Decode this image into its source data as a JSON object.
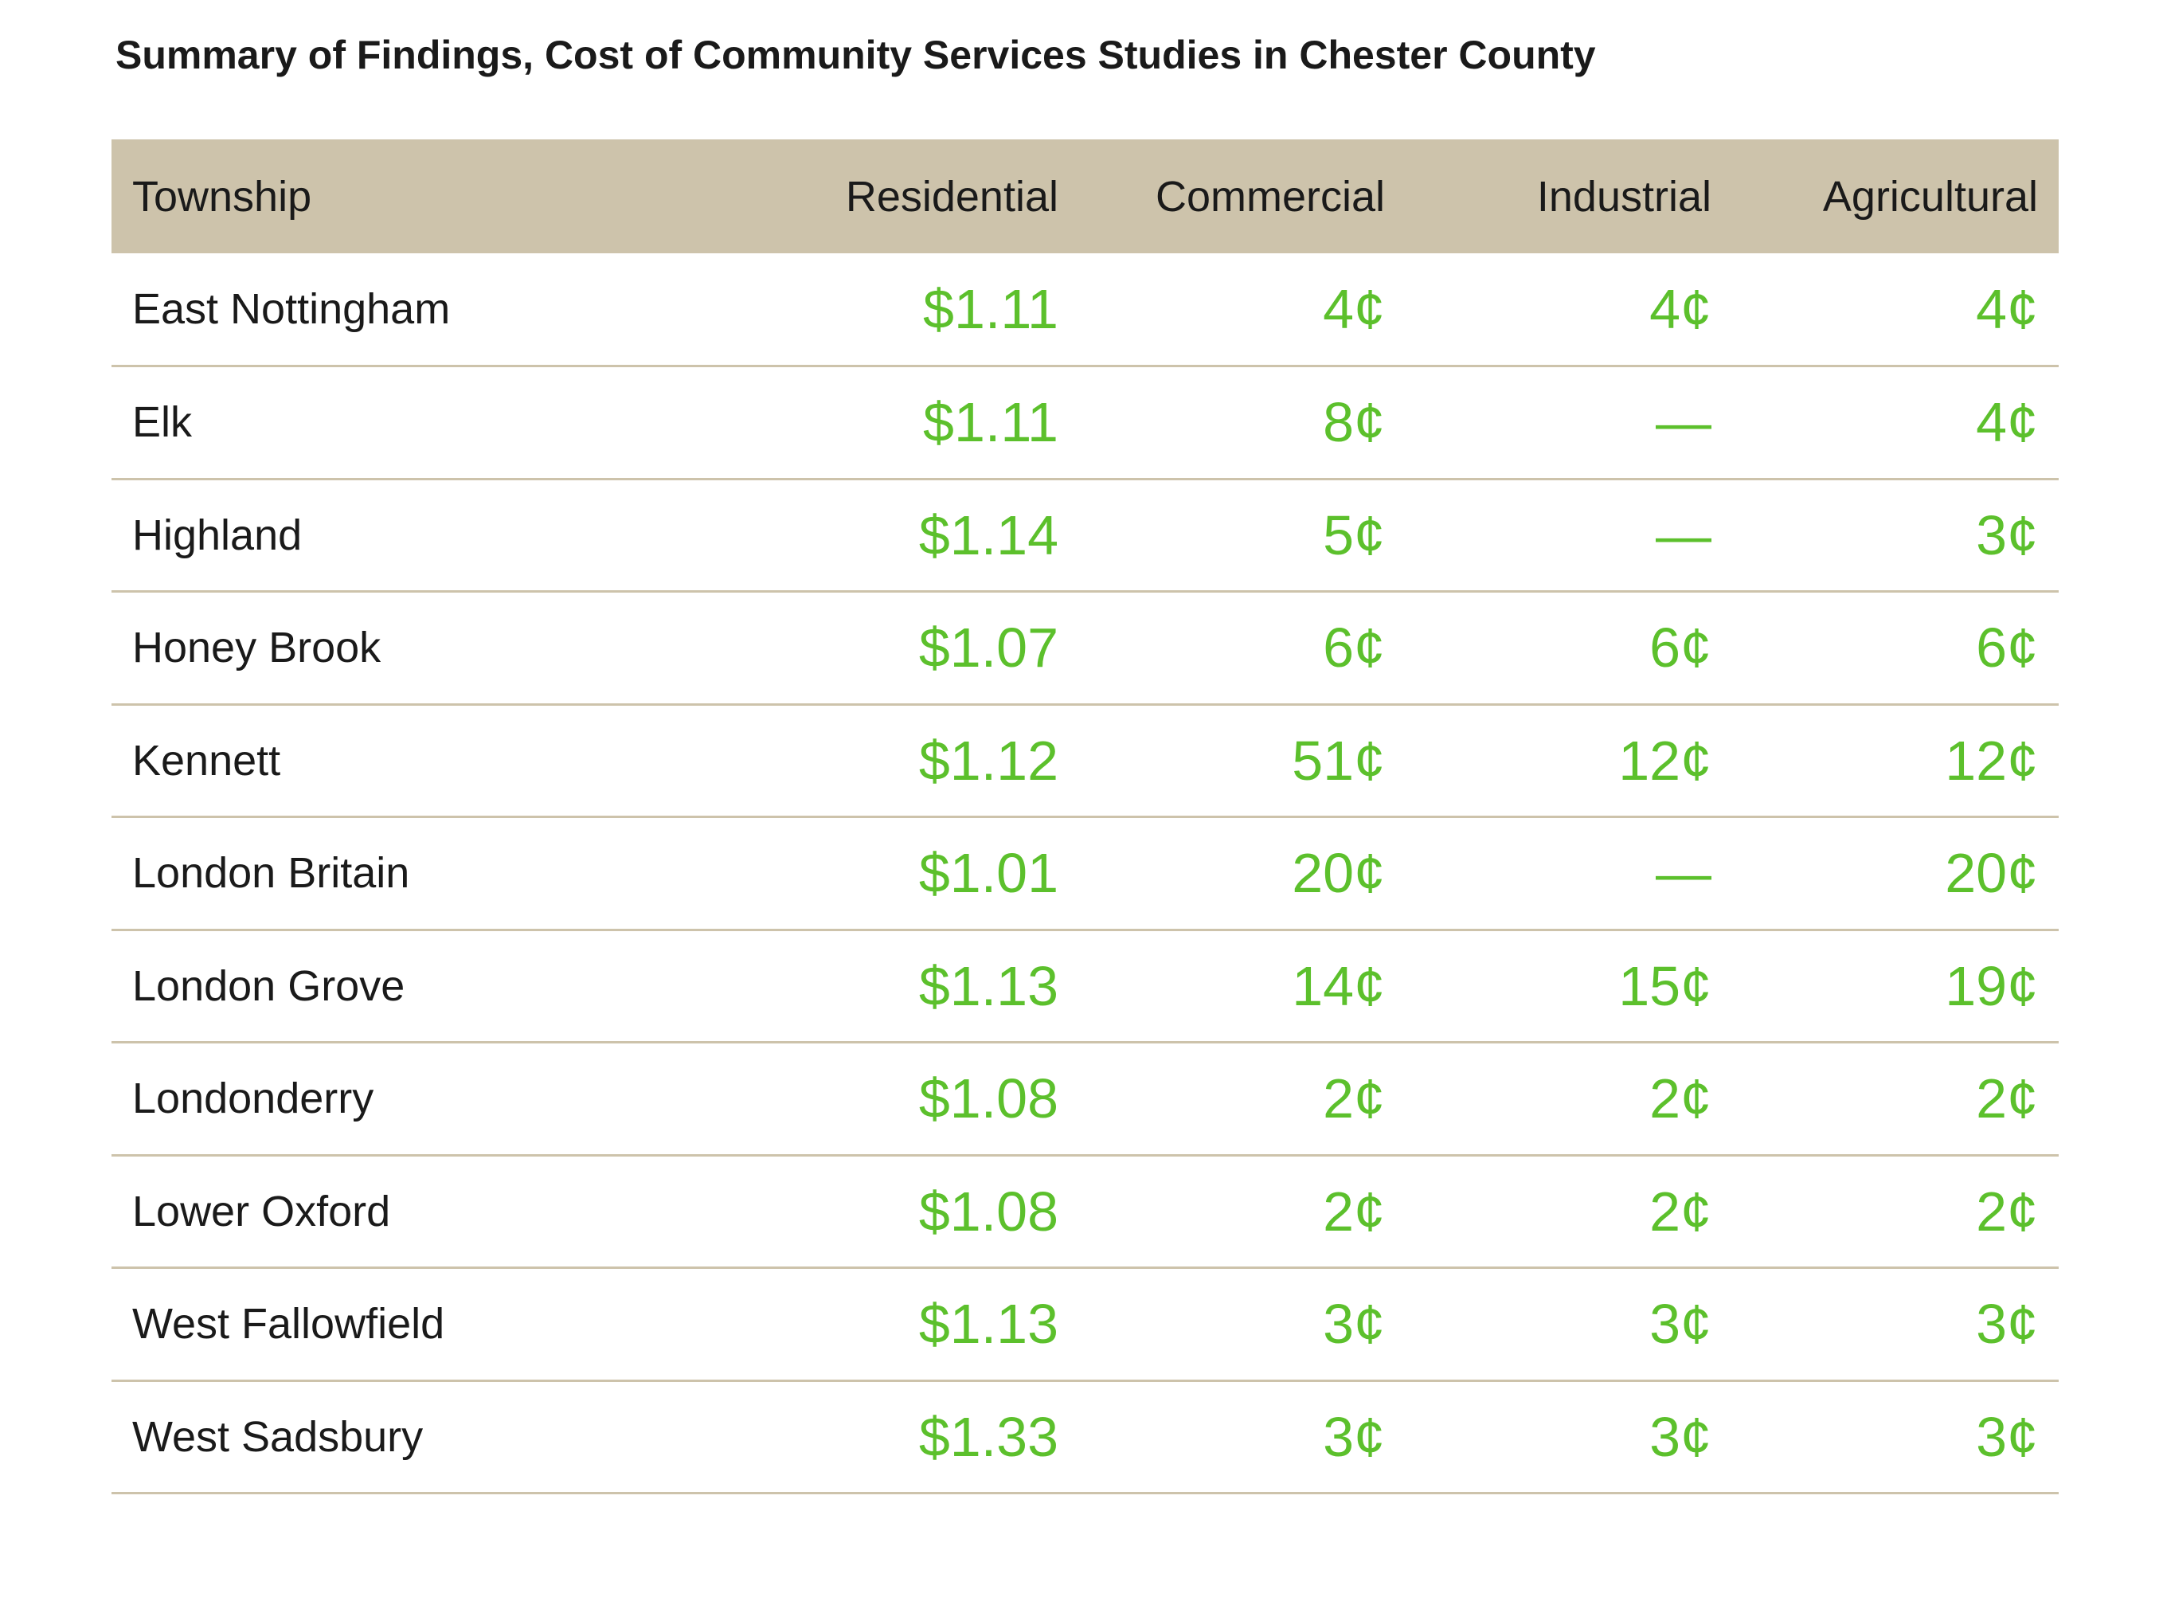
{
  "title": "Summary of Findings, Cost of Community Services Studies in Chester County",
  "colors": {
    "header_bg": "#cdc3ab",
    "value_text": "#5cc02c",
    "label_text": "#1a1a1a",
    "row_rule": "#cdc3ab"
  },
  "chart_data": {
    "type": "table",
    "title": "Summary of Findings, Cost of Community Services Studies in Chester County",
    "columns": [
      "Township",
      "Residential",
      "Commercial",
      "Industrial",
      "Agricultural"
    ],
    "rows": [
      [
        "East Nottingham",
        "$1.11",
        "4¢",
        "4¢",
        "4¢"
      ],
      [
        "Elk",
        "$1.11",
        "8¢",
        "—",
        "4¢"
      ],
      [
        "Highland",
        "$1.14",
        "5¢",
        "—",
        "3¢"
      ],
      [
        "Honey Brook",
        "$1.07",
        "6¢",
        "6¢",
        "6¢"
      ],
      [
        "Kennett",
        "$1.12",
        "51¢",
        "12¢",
        "12¢"
      ],
      [
        "London Britain",
        "$1.01",
        "20¢",
        "—",
        "20¢"
      ],
      [
        "London Grove",
        "$1.13",
        "14¢",
        "15¢",
        "19¢"
      ],
      [
        "Londonderry",
        "$1.08",
        "2¢",
        "2¢",
        "2¢"
      ],
      [
        "Lower Oxford",
        "$1.08",
        "2¢",
        "2¢",
        "2¢"
      ],
      [
        "West Fallowfield",
        "$1.13",
        "3¢",
        "3¢",
        "3¢"
      ],
      [
        "West Sadsbury",
        "$1.33",
        "3¢",
        "3¢",
        "3¢"
      ]
    ]
  }
}
